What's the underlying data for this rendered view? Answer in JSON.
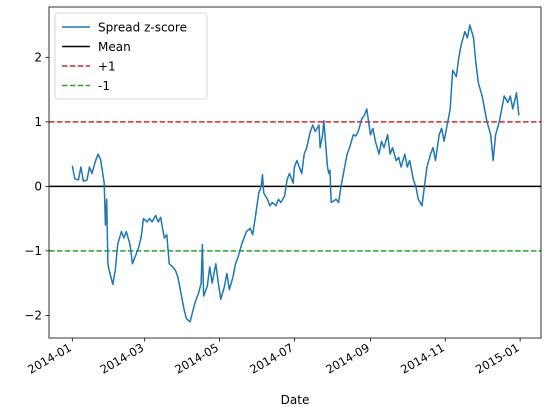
{
  "chart_data": {
    "type": "line",
    "title": "",
    "xlabel": "Date",
    "ylabel": "",
    "xlim": [
      "2013-12-13",
      "2015-01-18"
    ],
    "ylim": [
      -2.35,
      2.78
    ],
    "x_ticks": [
      "2014-01",
      "2014-03",
      "2014-05",
      "2014-07",
      "2014-09",
      "2014-11",
      "2015-01"
    ],
    "y_ticks": [
      -2,
      -1,
      0,
      1,
      2
    ],
    "grid": false,
    "legend_position": "top-left",
    "legend": [
      {
        "label": "Spread z-score",
        "color": "#1f77b4",
        "style": "solid"
      },
      {
        "label": "Mean",
        "color": "#000000",
        "style": "solid"
      },
      {
        "label": "+1",
        "color": "#d62728",
        "style": "dashed"
      },
      {
        "label": "-1",
        "color": "#2ca02c",
        "style": "dashed"
      }
    ],
    "hlines": [
      {
        "name": "Mean",
        "y": 0,
        "color": "#000000",
        "style": "solid"
      },
      {
        "name": "+1",
        "y": 1,
        "color": "#d62728",
        "style": "dashed"
      },
      {
        "name": "-1",
        "y": -1,
        "color": "#2ca02c",
        "style": "dashed"
      }
    ],
    "series": [
      {
        "name": "Spread z-score",
        "color": "#1f77b4",
        "points": [
          [
            "2014-01-01",
            0.32
          ],
          [
            "2014-01-03",
            0.12
          ],
          [
            "2014-01-06",
            0.1
          ],
          [
            "2014-01-08",
            0.3
          ],
          [
            "2014-01-10",
            0.08
          ],
          [
            "2014-01-13",
            0.1
          ],
          [
            "2014-01-15",
            0.3
          ],
          [
            "2014-01-17",
            0.2
          ],
          [
            "2014-01-20",
            0.4
          ],
          [
            "2014-01-22",
            0.5
          ],
          [
            "2014-01-24",
            0.42
          ],
          [
            "2014-01-27",
            0.05
          ],
          [
            "2014-01-28",
            -0.6
          ],
          [
            "2014-01-29",
            -0.2
          ],
          [
            "2014-01-30",
            -1.2
          ],
          [
            "2014-01-31",
            -1.3
          ],
          [
            "2014-02-03",
            -1.52
          ],
          [
            "2014-02-05",
            -1.3
          ],
          [
            "2014-02-07",
            -0.9
          ],
          [
            "2014-02-10",
            -0.7
          ],
          [
            "2014-02-12",
            -0.8
          ],
          [
            "2014-02-14",
            -0.7
          ],
          [
            "2014-02-17",
            -0.9
          ],
          [
            "2014-02-19",
            -1.2
          ],
          [
            "2014-02-21",
            -1.1
          ],
          [
            "2014-02-24",
            -0.95
          ],
          [
            "2014-02-26",
            -0.8
          ],
          [
            "2014-02-28",
            -0.5
          ],
          [
            "2014-03-03",
            -0.55
          ],
          [
            "2014-03-05",
            -0.5
          ],
          [
            "2014-03-07",
            -0.55
          ],
          [
            "2014-03-10",
            -0.45
          ],
          [
            "2014-03-12",
            -0.55
          ],
          [
            "2014-03-14",
            -0.48
          ],
          [
            "2014-03-17",
            -0.8
          ],
          [
            "2014-03-19",
            -0.75
          ],
          [
            "2014-03-21",
            -1.2
          ],
          [
            "2014-03-24",
            -1.25
          ],
          [
            "2014-03-26",
            -1.3
          ],
          [
            "2014-03-28",
            -1.4
          ],
          [
            "2014-03-31",
            -1.7
          ],
          [
            "2014-04-02",
            -1.9
          ],
          [
            "2014-04-04",
            -2.05
          ],
          [
            "2014-04-07",
            -2.1
          ],
          [
            "2014-04-09",
            -1.95
          ],
          [
            "2014-04-11",
            -1.8
          ],
          [
            "2014-04-14",
            -1.65
          ],
          [
            "2014-04-16",
            -1.5
          ],
          [
            "2014-04-17",
            -0.9
          ],
          [
            "2014-04-18",
            -1.7
          ],
          [
            "2014-04-21",
            -1.55
          ],
          [
            "2014-04-23",
            -1.25
          ],
          [
            "2014-04-25",
            -1.5
          ],
          [
            "2014-04-28",
            -1.2
          ],
          [
            "2014-04-30",
            -1.5
          ],
          [
            "2014-05-02",
            -1.75
          ],
          [
            "2014-05-05",
            -1.55
          ],
          [
            "2014-05-07",
            -1.35
          ],
          [
            "2014-05-09",
            -1.6
          ],
          [
            "2014-05-12",
            -1.4
          ],
          [
            "2014-05-14",
            -1.2
          ],
          [
            "2014-05-16",
            -1.1
          ],
          [
            "2014-05-19",
            -0.9
          ],
          [
            "2014-05-21",
            -0.8
          ],
          [
            "2014-05-23",
            -0.7
          ],
          [
            "2014-05-26",
            -0.65
          ],
          [
            "2014-05-28",
            -0.75
          ],
          [
            "2014-05-30",
            -0.5
          ],
          [
            "2014-06-02",
            -0.1
          ],
          [
            "2014-06-04",
            0.0
          ],
          [
            "2014-06-05",
            0.18
          ],
          [
            "2014-06-06",
            -0.1
          ],
          [
            "2014-06-09",
            -0.2
          ],
          [
            "2014-06-11",
            -0.3
          ],
          [
            "2014-06-13",
            -0.25
          ],
          [
            "2014-06-16",
            -0.3
          ],
          [
            "2014-06-18",
            -0.2
          ],
          [
            "2014-06-20",
            -0.25
          ],
          [
            "2014-06-23",
            -0.15
          ],
          [
            "2014-06-25",
            0.1
          ],
          [
            "2014-06-27",
            0.2
          ],
          [
            "2014-06-30",
            0.05
          ],
          [
            "2014-07-01",
            0.3
          ],
          [
            "2014-07-03",
            0.4
          ],
          [
            "2014-07-07",
            0.2
          ],
          [
            "2014-07-09",
            0.5
          ],
          [
            "2014-07-11",
            0.6
          ],
          [
            "2014-07-14",
            0.85
          ],
          [
            "2014-07-16",
            0.95
          ],
          [
            "2014-07-18",
            0.85
          ],
          [
            "2014-07-21",
            0.95
          ],
          [
            "2014-07-22",
            0.6
          ],
          [
            "2014-07-24",
            0.8
          ],
          [
            "2014-07-25",
            1.02
          ],
          [
            "2014-07-28",
            0.3
          ],
          [
            "2014-07-29",
            0.2
          ],
          [
            "2014-07-30",
            0.25
          ],
          [
            "2014-07-31",
            -0.25
          ],
          [
            "2014-08-04",
            -0.2
          ],
          [
            "2014-08-06",
            -0.25
          ],
          [
            "2014-08-08",
            0.0
          ],
          [
            "2014-08-11",
            0.3
          ],
          [
            "2014-08-13",
            0.5
          ],
          [
            "2014-08-15",
            0.6
          ],
          [
            "2014-08-18",
            0.8
          ],
          [
            "2014-08-20",
            0.78
          ],
          [
            "2014-08-22",
            0.85
          ],
          [
            "2014-08-25",
            1.05
          ],
          [
            "2014-08-27",
            1.1
          ],
          [
            "2014-08-29",
            1.2
          ],
          [
            "2014-09-01",
            0.8
          ],
          [
            "2014-09-03",
            0.9
          ],
          [
            "2014-09-05",
            0.7
          ],
          [
            "2014-09-08",
            0.5
          ],
          [
            "2014-09-10",
            0.7
          ],
          [
            "2014-09-12",
            0.6
          ],
          [
            "2014-09-15",
            0.8
          ],
          [
            "2014-09-17",
            0.5
          ],
          [
            "2014-09-19",
            0.6
          ],
          [
            "2014-09-22",
            0.4
          ],
          [
            "2014-09-24",
            0.45
          ],
          [
            "2014-09-26",
            0.3
          ],
          [
            "2014-09-29",
            0.5
          ],
          [
            "2014-10-01",
            0.3
          ],
          [
            "2014-10-03",
            0.4
          ],
          [
            "2014-10-06",
            0.1
          ],
          [
            "2014-10-08",
            0.0
          ],
          [
            "2014-10-10",
            -0.2
          ],
          [
            "2014-10-13",
            -0.3
          ],
          [
            "2014-10-15",
            0.0
          ],
          [
            "2014-10-17",
            0.3
          ],
          [
            "2014-10-20",
            0.5
          ],
          [
            "2014-10-22",
            0.6
          ],
          [
            "2014-10-24",
            0.4
          ],
          [
            "2014-10-27",
            0.8
          ],
          [
            "2014-10-29",
            0.9
          ],
          [
            "2014-10-31",
            0.7
          ],
          [
            "2014-11-03",
            1.0
          ],
          [
            "2014-11-05",
            1.2
          ],
          [
            "2014-11-07",
            1.8
          ],
          [
            "2014-11-10",
            1.7
          ],
          [
            "2014-11-12",
            2.0
          ],
          [
            "2014-11-14",
            2.2
          ],
          [
            "2014-11-17",
            2.4
          ],
          [
            "2014-11-19",
            2.3
          ],
          [
            "2014-11-21",
            2.5
          ],
          [
            "2014-11-24",
            2.3
          ],
          [
            "2014-11-26",
            1.9
          ],
          [
            "2014-11-28",
            1.6
          ],
          [
            "2014-12-01",
            1.4
          ],
          [
            "2014-12-03",
            1.2
          ],
          [
            "2014-12-05",
            1.0
          ],
          [
            "2014-12-08",
            0.8
          ],
          [
            "2014-12-10",
            0.4
          ],
          [
            "2014-12-12",
            0.8
          ],
          [
            "2014-12-15",
            1.0
          ],
          [
            "2014-12-17",
            1.2
          ],
          [
            "2014-12-19",
            1.4
          ],
          [
            "2014-12-22",
            1.3
          ],
          [
            "2014-12-24",
            1.4
          ],
          [
            "2014-12-26",
            1.2
          ],
          [
            "2014-12-29",
            1.45
          ],
          [
            "2014-12-31",
            1.1
          ]
        ]
      }
    ]
  }
}
